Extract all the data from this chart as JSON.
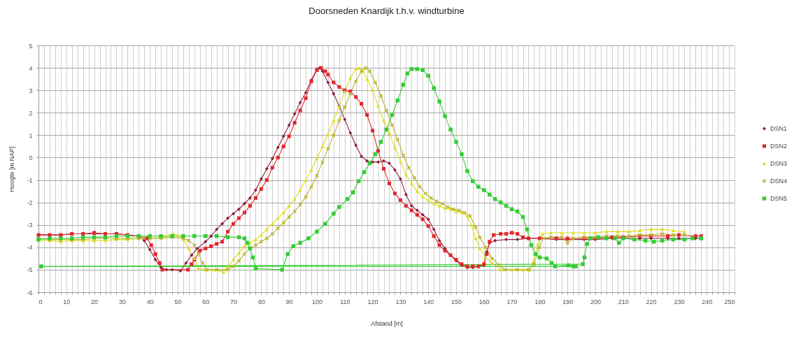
{
  "chart_data": {
    "type": "line",
    "title": "Doorsneden Knardijk t.h.v. windturbine",
    "xlabel": "Afstand [m]",
    "ylabel": "Hoogte [m NAP]",
    "xlim": [
      0,
      250
    ],
    "ylim": [
      -6,
      5
    ],
    "xticks": [
      0,
      {
        "value": 2,
        "label": null
      },
      {
        "value": 4,
        "label": null
      },
      {
        "value": 6,
        "label": null
      },
      {
        "value": 8,
        "label": null
      },
      10,
      {
        "value": 12,
        "label": null
      },
      {
        "value": 14,
        "label": null
      },
      {
        "value": 16,
        "label": null
      },
      {
        "value": 18,
        "label": null
      },
      20,
      {
        "value": 22,
        "label": null
      },
      {
        "value": 24,
        "label": null
      },
      {
        "value": 26,
        "label": null
      },
      {
        "value": 28,
        "label": null
      },
      30,
      {
        "value": 32,
        "label": null
      },
      {
        "value": 34,
        "label": null
      },
      {
        "value": 36,
        "label": null
      },
      {
        "value": 38,
        "label": null
      },
      40,
      {
        "value": 42,
        "label": null
      },
      {
        "value": 44,
        "label": null
      },
      {
        "value": 46,
        "label": null
      },
      {
        "value": 48,
        "label": null
      },
      50,
      {
        "value": 52,
        "label": null
      },
      {
        "value": 54,
        "label": null
      },
      {
        "value": 56,
        "label": null
      },
      {
        "value": 58,
        "label": null
      },
      60,
      {
        "value": 62,
        "label": null
      },
      {
        "value": 64,
        "label": null
      },
      {
        "value": 66,
        "label": null
      },
      {
        "value": 68,
        "label": null
      },
      70,
      {
        "value": 72,
        "label": null
      },
      {
        "value": 74,
        "label": null
      },
      {
        "value": 76,
        "label": null
      },
      {
        "value": 78,
        "label": null
      },
      80,
      {
        "value": 82,
        "label": null
      },
      {
        "value": 84,
        "label": null
      },
      {
        "value": 86,
        "label": null
      },
      {
        "value": 88,
        "label": null
      },
      90,
      {
        "value": 92,
        "label": null
      },
      {
        "value": 94,
        "label": null
      },
      {
        "value": 96,
        "label": null
      },
      {
        "value": 98,
        "label": null
      },
      100,
      {
        "value": 102,
        "label": null
      },
      {
        "value": 104,
        "label": null
      },
      {
        "value": 106,
        "label": null
      },
      {
        "value": 108,
        "label": null
      },
      110,
      {
        "value": 112,
        "label": null
      },
      {
        "value": 114,
        "label": null
      },
      {
        "value": 116,
        "label": null
      },
      {
        "value": 118,
        "label": null
      },
      120,
      {
        "value": 122,
        "label": null
      },
      {
        "value": 124,
        "label": null
      },
      {
        "value": 126,
        "label": null
      },
      {
        "value": 128,
        "label": null
      },
      130,
      {
        "value": 132,
        "label": null
      },
      {
        "value": 134,
        "label": null
      },
      {
        "value": 136,
        "label": null
      },
      {
        "value": 138,
        "label": null
      },
      140,
      {
        "value": 142,
        "label": null
      },
      {
        "value": 144,
        "label": null
      },
      {
        "value": 146,
        "label": null
      },
      {
        "value": 148,
        "label": null
      },
      150,
      {
        "value": 152,
        "label": null
      },
      {
        "value": 154,
        "label": null
      },
      {
        "value": 156,
        "label": null
      },
      {
        "value": 158,
        "label": null
      },
      160,
      {
        "value": 162,
        "label": null
      },
      {
        "value": 164,
        "label": null
      },
      {
        "value": 166,
        "label": null
      },
      {
        "value": 168,
        "label": null
      },
      170,
      {
        "value": 172,
        "label": null
      },
      {
        "value": 174,
        "label": null
      },
      {
        "value": 176,
        "label": null
      },
      {
        "value": 178,
        "label": null
      },
      180,
      {
        "value": 182,
        "label": null
      },
      {
        "value": 184,
        "label": null
      },
      {
        "value": 186,
        "label": null
      },
      {
        "value": 188,
        "label": null
      },
      190,
      {
        "value": 192,
        "label": null
      },
      {
        "value": 194,
        "label": null
      },
      {
        "value": 196,
        "label": null
      },
      {
        "value": 198,
        "label": null
      },
      200,
      {
        "value": 202,
        "label": null
      },
      {
        "value": 204,
        "label": null
      },
      {
        "value": 206,
        "label": null
      },
      {
        "value": 208,
        "label": null
      },
      210,
      {
        "value": 212,
        "label": null
      },
      {
        "value": 214,
        "label": null
      },
      {
        "value": 216,
        "label": null
      },
      {
        "value": 218,
        "label": null
      },
      220,
      {
        "value": 222,
        "label": null
      },
      {
        "value": 224,
        "label": null
      },
      {
        "value": 226,
        "label": null
      },
      {
        "value": 228,
        "label": null
      },
      230,
      {
        "value": 232,
        "label": null
      },
      {
        "value": 234,
        "label": null
      },
      {
        "value": 236,
        "label": null
      },
      {
        "value": 238,
        "label": null
      },
      240,
      {
        "value": 242,
        "label": null
      },
      {
        "value": 244,
        "label": null
      },
      {
        "value": 246,
        "label": null
      },
      {
        "value": 248,
        "label": null
      },
      250
    ],
    "yticks": [
      -6,
      -5,
      -4,
      -3,
      -2,
      -1,
      0,
      1,
      2,
      3,
      4,
      5
    ],
    "grid": true,
    "legend": "right",
    "line_style": "solid",
    "series": [
      {
        "name": "DSN1",
        "color": "#8b1c3a",
        "marker": "diamond",
        "x": [
          0,
          4,
          8,
          12,
          16,
          20,
          24,
          28,
          32,
          36,
          38,
          40,
          42,
          44,
          46,
          48,
          51,
          53,
          55,
          57,
          60,
          62,
          64,
          66,
          68,
          70,
          72,
          74,
          76,
          78,
          80,
          82,
          84,
          86,
          88,
          90,
          92,
          94,
          96,
          98,
          100,
          101,
          102,
          104,
          106,
          108,
          110,
          112,
          114,
          116,
          118,
          120,
          122,
          124,
          126,
          128,
          130,
          132,
          134,
          136,
          138,
          140,
          142,
          144,
          146,
          148,
          150,
          152,
          154,
          156,
          158,
          160,
          161,
          162,
          164,
          168,
          172,
          176,
          180,
          186,
          190,
          196,
          200,
          206,
          210,
          216,
          220,
          226,
          230,
          236,
          238
        ],
        "values": [
          -3.45,
          -3.45,
          -3.45,
          -3.4,
          -3.4,
          -3.4,
          -3.4,
          -3.4,
          -3.45,
          -3.5,
          -3.7,
          -4.1,
          -4.55,
          -4.9,
          -5.0,
          -5.0,
          -5.05,
          -4.7,
          -4.35,
          -4.05,
          -3.75,
          -3.5,
          -3.2,
          -2.95,
          -2.7,
          -2.5,
          -2.3,
          -2.05,
          -1.8,
          -1.45,
          -0.95,
          -0.5,
          -0.05,
          0.45,
          0.95,
          1.45,
          1.95,
          2.45,
          2.9,
          3.45,
          3.95,
          4.0,
          3.85,
          3.35,
          2.85,
          2.3,
          1.7,
          1.1,
          0.55,
          0.05,
          -0.15,
          -0.2,
          -0.2,
          -0.15,
          -0.25,
          -0.55,
          -0.95,
          -1.65,
          -2.15,
          -2.35,
          -2.55,
          -2.75,
          -3.2,
          -3.7,
          -4.05,
          -4.35,
          -4.6,
          -4.8,
          -4.9,
          -4.9,
          -4.85,
          -4.8,
          -4.2,
          -3.8,
          -3.7,
          -3.65,
          -3.65,
          -3.6,
          -3.6,
          -3.65,
          -3.65,
          -3.65,
          -3.65,
          -3.6,
          -3.6,
          -3.6,
          -3.6,
          -3.6,
          -3.6,
          -3.6,
          -3.6
        ]
      },
      {
        "name": "DSN2",
        "color": "#e3262b",
        "marker": "square",
        "x": [
          0,
          4,
          8,
          12,
          16,
          20,
          24,
          28,
          32,
          36,
          39,
          40.5,
          42,
          43.5,
          44.5,
          53.7,
          55,
          56,
          58,
          60,
          62,
          64,
          66,
          68,
          70,
          72,
          74,
          76,
          78,
          80,
          82,
          84,
          86,
          88,
          90,
          92,
          94,
          96,
          98,
          100,
          101.5,
          103,
          104,
          106,
          108,
          110,
          112,
          114,
          116,
          118,
          120,
          122,
          124,
          126,
          128,
          130,
          132,
          134,
          136,
          138,
          140,
          142,
          144,
          146,
          148,
          150,
          152,
          154,
          156,
          158,
          160,
          161,
          162,
          163.5,
          166,
          168,
          170,
          172,
          174,
          176,
          180,
          186,
          190,
          196,
          200,
          206,
          210,
          216,
          220,
          226,
          230,
          236,
          238
        ],
        "values": [
          -3.45,
          -3.45,
          -3.45,
          -3.4,
          -3.4,
          -3.35,
          -3.4,
          -3.4,
          -3.45,
          -3.5,
          -3.6,
          -3.9,
          -4.3,
          -4.7,
          -5.0,
          -5.0,
          -4.75,
          -4.55,
          -4.15,
          -4.05,
          -3.95,
          -3.85,
          -3.75,
          -3.3,
          -2.95,
          -2.7,
          -2.45,
          -2.15,
          -1.8,
          -1.4,
          -1.0,
          -0.45,
          0.0,
          0.5,
          0.95,
          1.55,
          2.1,
          2.65,
          3.4,
          3.9,
          4.0,
          3.85,
          3.7,
          3.35,
          3.15,
          3.0,
          2.95,
          2.7,
          2.4,
          1.9,
          1.2,
          0.3,
          -0.5,
          -1.15,
          -1.6,
          -1.9,
          -2.15,
          -2.35,
          -2.55,
          -2.75,
          -3.05,
          -3.5,
          -3.9,
          -4.15,
          -4.35,
          -4.55,
          -4.75,
          -4.85,
          -4.85,
          -4.85,
          -4.75,
          -4.3,
          -3.75,
          -3.45,
          -3.4,
          -3.4,
          -3.35,
          -3.4,
          -3.55,
          -3.6,
          -3.6,
          -3.6,
          -3.6,
          -3.6,
          -3.6,
          -3.55,
          -3.55,
          -3.5,
          -3.5,
          -3.5,
          -3.45,
          -3.5,
          -3.5
        ]
      },
      {
        "name": "DSN3",
        "color": "#dcdc14",
        "marker": "triangle",
        "x": [
          0,
          4,
          8,
          12,
          16,
          20,
          24,
          28,
          32,
          36,
          40,
          44,
          46,
          48.5,
          50,
          52,
          54,
          56,
          57.5,
          60,
          63,
          66.5,
          68,
          70,
          72,
          74,
          76,
          78,
          80,
          82,
          84,
          86,
          88,
          90,
          92,
          94,
          96,
          98,
          100,
          102,
          104,
          106,
          108,
          110,
          112,
          114,
          115,
          116.5,
          118,
          120,
          122,
          124,
          126,
          128,
          130,
          132,
          134,
          136,
          138,
          140,
          142,
          144,
          146,
          148,
          150,
          152,
          154,
          155.5,
          157,
          158.5,
          160.5,
          163,
          166,
          170,
          174,
          176.5,
          177.7,
          179.4,
          181,
          184,
          188,
          192,
          196,
          200,
          204,
          208,
          212,
          216,
          220,
          224,
          228,
          232
        ],
        "values": [
          -3.7,
          -3.7,
          -3.75,
          -3.7,
          -3.7,
          -3.7,
          -3.7,
          -3.65,
          -3.65,
          -3.6,
          -3.6,
          -3.55,
          -3.5,
          -3.4,
          -3.45,
          -3.65,
          -4.05,
          -4.5,
          -4.95,
          -5.0,
          -5.0,
          -5.1,
          -4.85,
          -4.55,
          -4.25,
          -3.95,
          -3.8,
          -3.65,
          -3.45,
          -3.2,
          -2.95,
          -2.7,
          -2.45,
          -2.15,
          -1.85,
          -1.45,
          -1.0,
          -0.55,
          -0.05,
          0.5,
          1.05,
          1.65,
          2.3,
          2.95,
          3.55,
          3.95,
          4.0,
          3.9,
          3.5,
          3.0,
          2.3,
          1.65,
          1.1,
          0.45,
          -0.15,
          -0.75,
          -1.15,
          -1.5,
          -1.75,
          -1.9,
          -2.05,
          -2.15,
          -2.25,
          -2.3,
          -2.4,
          -2.45,
          -2.6,
          -3.0,
          -3.6,
          -4.05,
          -4.45,
          -4.7,
          -5.0,
          -5.0,
          -5.0,
          -5.0,
          -4.65,
          -3.85,
          -3.4,
          -3.35,
          -3.35,
          -3.35,
          -3.35,
          -3.35,
          -3.3,
          -3.3,
          -3.3,
          -3.25,
          -3.2,
          -3.2,
          -3.25,
          -3.3
        ]
      },
      {
        "name": "DSN4",
        "color": "#b8b42a",
        "marker": "cross",
        "x": [
          0,
          4,
          8,
          12,
          16,
          20,
          24,
          28,
          32,
          36,
          40,
          44,
          48,
          52,
          54,
          56,
          57.5,
          59,
          60.5,
          64,
          68,
          70,
          72,
          74,
          76,
          78,
          80,
          82,
          84,
          86,
          88,
          90,
          92,
          94,
          96,
          98,
          100,
          102,
          104,
          106,
          108,
          110,
          112,
          114,
          116,
          117.5,
          119,
          121,
          123,
          125,
          127,
          129,
          131,
          133,
          135,
          137,
          139,
          141,
          143,
          145,
          147,
          149,
          151,
          153,
          155,
          157,
          158.5,
          160.5,
          163,
          165.5,
          167.5,
          172,
          176,
          178,
          179.8,
          181.5,
          184,
          188,
          190,
          192,
          196,
          200,
          204,
          208,
          212,
          216,
          220,
          224,
          228,
          232
        ],
        "values": [
          -3.6,
          -3.65,
          -3.65,
          -3.65,
          -3.65,
          -3.6,
          -3.6,
          -3.6,
          -3.6,
          -3.6,
          -3.6,
          -3.6,
          -3.55,
          -3.6,
          -3.7,
          -3.9,
          -4.3,
          -4.7,
          -5.0,
          -5.0,
          -5.0,
          -4.85,
          -4.6,
          -4.3,
          -4.05,
          -3.9,
          -3.75,
          -3.6,
          -3.4,
          -3.15,
          -2.9,
          -2.65,
          -2.4,
          -2.1,
          -1.75,
          -1.3,
          -0.8,
          -0.2,
          0.4,
          1.0,
          1.65,
          2.25,
          2.85,
          3.4,
          3.85,
          4.0,
          3.85,
          3.35,
          2.75,
          2.1,
          1.45,
          0.8,
          0.1,
          -0.45,
          -0.9,
          -1.3,
          -1.6,
          -1.8,
          -1.95,
          -2.05,
          -2.2,
          -2.3,
          -2.35,
          -2.45,
          -2.6,
          -3.1,
          -3.55,
          -4.0,
          -4.5,
          -4.8,
          -5.0,
          -5.0,
          -5.0,
          -4.75,
          -4.0,
          -3.6,
          -3.55,
          -3.55,
          -3.8,
          -3.6,
          -3.55,
          -3.55,
          -3.5,
          -3.5,
          -3.5,
          -3.45,
          -3.45,
          -3.4,
          -3.45,
          -3.45
        ]
      },
      {
        "name": "DSN5",
        "color": "#33cc33",
        "marker": "square",
        "x": [
          0,
          4,
          8,
          12,
          16,
          20,
          24,
          28,
          32,
          36,
          40,
          44,
          48,
          52,
          56,
          60,
          64,
          68,
          72,
          74,
          75,
          76,
          77,
          78,
          87.5,
          89.5,
          91.5,
          94,
          97,
          100,
          103,
          106,
          108,
          111,
          113,
          115,
          117,
          119,
          121,
          123,
          125,
          127,
          129,
          131,
          132.5,
          134,
          136,
          138,
          140,
          142,
          144,
          146,
          148,
          150,
          152,
          154,
          156,
          158,
          160,
          162,
          164,
          166,
          168,
          170,
          172,
          174,
          175.5,
          177,
          178.5,
          180,
          182.5,
          184.3,
          185.6,
          190.3,
          192,
          193,
          1,
          195.5,
          196.1,
          197,
          198.2,
          201,
          204,
          207,
          208.5,
          210,
          214,
          218,
          221,
          224,
          228,
          232,
          235,
          238
        ],
        "values": [
          -3.65,
          -3.6,
          -3.6,
          -3.6,
          -3.55,
          -3.55,
          -3.55,
          -3.5,
          -3.5,
          -3.5,
          -3.5,
          -3.5,
          -3.5,
          -3.5,
          -3.5,
          -3.5,
          -3.5,
          -3.55,
          -3.55,
          -3.6,
          -3.8,
          -4.05,
          -4.45,
          -4.95,
          -5.0,
          -4.3,
          -3.95,
          -3.8,
          -3.6,
          -3.3,
          -2.95,
          -2.5,
          -2.2,
          -1.85,
          -1.55,
          -1.05,
          -0.65,
          -0.25,
          0.15,
          0.7,
          1.25,
          1.9,
          2.55,
          3.25,
          3.75,
          3.95,
          3.95,
          3.9,
          3.65,
          3.1,
          2.5,
          1.85,
          1.25,
          0.7,
          0.15,
          -0.6,
          -1.05,
          -1.3,
          -1.45,
          -1.65,
          -1.85,
          -2.0,
          -2.15,
          -2.3,
          -2.4,
          -2.65,
          -3.2,
          -3.9,
          -4.3,
          -4.45,
          -4.5,
          -4.7,
          -4.85,
          -4.8,
          -4.85,
          -4.85,
          -4.85,
          -4.75,
          -4.45,
          -3.85,
          -3.6,
          -3.55,
          -3.6,
          -3.6,
          -3.8,
          -3.6,
          -3.65,
          -3.7,
          -3.75,
          -3.7,
          -3.65,
          -3.65,
          -3.6,
          -3.6
        ]
      }
    ]
  }
}
